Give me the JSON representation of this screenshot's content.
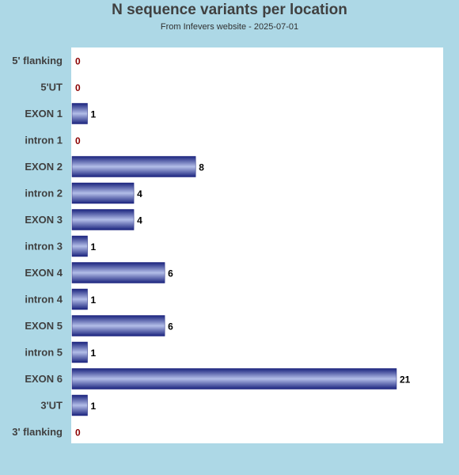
{
  "chart_data": {
    "type": "bar",
    "orientation": "horizontal",
    "title": "N sequence variants per location",
    "subtitle": "From Infevers website - 2025-07-01",
    "categories": [
      "5' flanking",
      "5'UT",
      "EXON 1",
      "intron 1",
      "EXON 2",
      "intron 2",
      "EXON 3",
      "intron 3",
      "EXON 4",
      "intron 4",
      "EXON 5",
      "intron 5",
      "EXON 6",
      "3'UT",
      "3' flanking"
    ],
    "values": [
      0,
      0,
      1,
      0,
      8,
      4,
      4,
      1,
      6,
      1,
      6,
      1,
      21,
      1,
      0
    ],
    "xlim": [
      0,
      21
    ],
    "grid": false,
    "colors": {
      "background": "#add8e6",
      "plot_area": "#ffffff",
      "bar_dark": "#1a237e",
      "bar_light": "#b3bee8",
      "zero_label": "#8b0000",
      "value_label": "#000000",
      "category_label": "#404040"
    }
  }
}
